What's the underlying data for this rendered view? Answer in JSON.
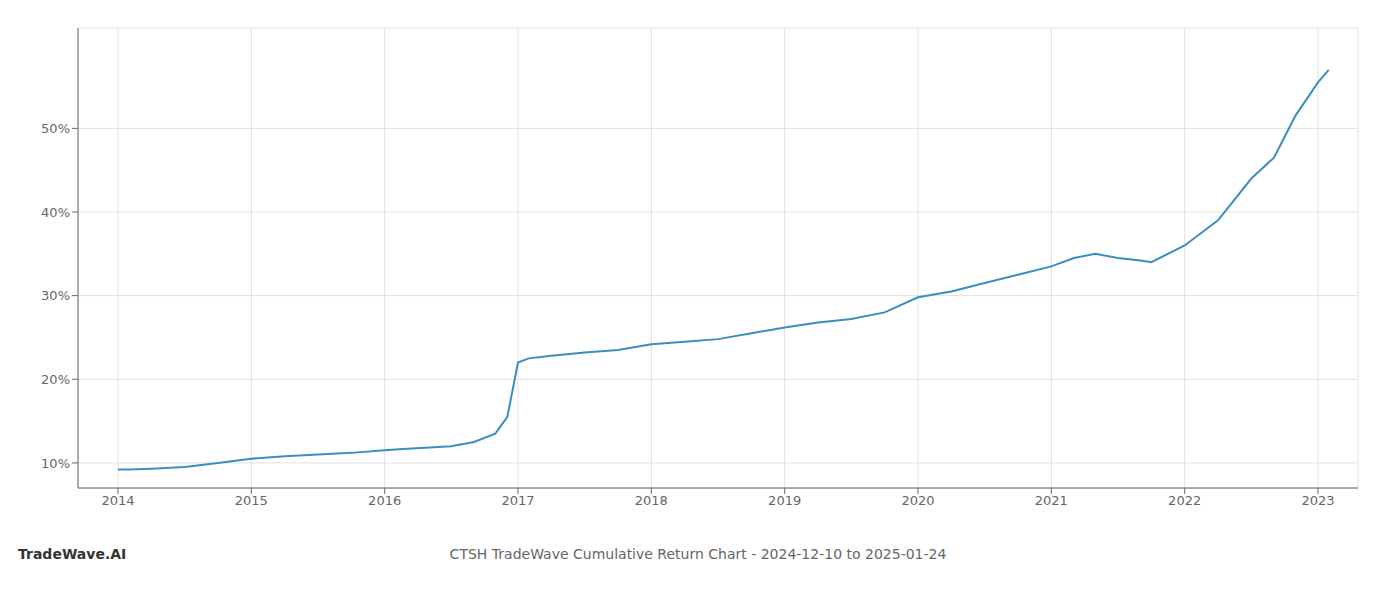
{
  "chart_data": {
    "type": "line",
    "title": "CTSH TradeWave Cumulative Return Chart - 2024-12-10 to 2025-01-24",
    "annotations": [
      "TradeWave.AI"
    ],
    "x": [
      2014.0,
      2014.08,
      2014.25,
      2014.5,
      2014.75,
      2015.0,
      2015.25,
      2015.5,
      2015.75,
      2016.0,
      2016.08,
      2016.17,
      2016.5,
      2016.67,
      2016.83,
      2016.92,
      2017.0,
      2017.08,
      2017.25,
      2017.5,
      2017.75,
      2018.0,
      2018.25,
      2018.5,
      2018.75,
      2019.0,
      2019.25,
      2019.5,
      2019.75,
      2020.0,
      2020.25,
      2020.5,
      2020.75,
      2021.0,
      2021.17,
      2021.33,
      2021.5,
      2021.67,
      2021.75,
      2022.0,
      2022.25,
      2022.5,
      2022.67,
      2022.75,
      2022.83,
      2023.0,
      2023.08
    ],
    "values": [
      9.2,
      9.2,
      9.3,
      9.5,
      10.0,
      10.5,
      10.8,
      11.0,
      11.2,
      11.5,
      11.6,
      11.7,
      12.0,
      12.5,
      13.5,
      15.5,
      22.0,
      22.5,
      22.8,
      23.2,
      23.5,
      24.2,
      24.5,
      24.8,
      25.5,
      26.2,
      26.8,
      27.2,
      28.0,
      29.8,
      30.5,
      31.5,
      32.5,
      33.5,
      34.5,
      35.0,
      34.5,
      34.2,
      34.0,
      36.0,
      39.0,
      44.0,
      46.5,
      49.0,
      51.5,
      55.5,
      57.0
    ],
    "color": "#3a8fc0",
    "xlim": [
      2013.7,
      2023.3
    ],
    "xticks": [
      2014,
      2015,
      2016,
      2017,
      2018,
      2019,
      2020,
      2021,
      2022,
      2023
    ],
    "ylim": [
      7,
      62
    ],
    "yticks": [
      {
        "value": 10,
        "label": "10%"
      },
      {
        "value": 20,
        "label": "20%"
      },
      {
        "value": 30,
        "label": "30%"
      },
      {
        "value": 40,
        "label": "40%"
      },
      {
        "value": 50,
        "label": "50%"
      }
    ],
    "grid": true
  }
}
